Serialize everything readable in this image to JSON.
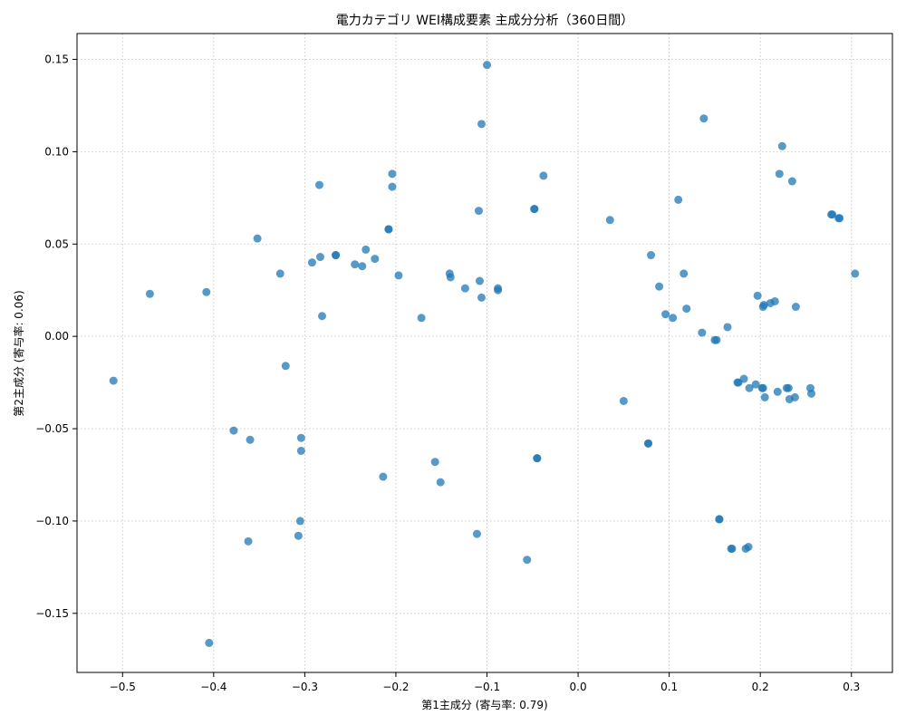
{
  "chart_data": {
    "type": "scatter",
    "title": "電力カテゴリ WEI構成要素 主成分分析（360日間）",
    "xlabel": "第1主成分 (寄与率: 0.79)",
    "ylabel": "第2主成分 (寄与率: 0.06)",
    "xlim": [
      -0.55,
      0.345
    ],
    "ylim": [
      -0.182,
      0.164
    ],
    "grid": true,
    "x_ticks": [
      -0.5,
      -0.4,
      -0.3,
      -0.2,
      -0.1,
      0.0,
      0.1,
      0.2,
      0.3
    ],
    "x_tick_labels": [
      "−0.5",
      "−0.4",
      "−0.3",
      "−0.2",
      "−0.1",
      "0.0",
      "0.1",
      "0.2",
      "0.3"
    ],
    "y_ticks": [
      -0.15,
      -0.1,
      -0.05,
      0.0,
      0.05,
      0.1,
      0.15
    ],
    "y_tick_labels": [
      "−0.15",
      "−0.10",
      "−0.05",
      "0.00",
      "0.05",
      "0.10",
      "0.15"
    ],
    "series": [
      {
        "color": "#1f77b4",
        "points": [
          [
            -0.51,
            -0.024
          ],
          [
            -0.47,
            0.023
          ],
          [
            -0.408,
            0.024
          ],
          [
            -0.405,
            -0.166
          ],
          [
            -0.378,
            -0.051
          ],
          [
            -0.362,
            -0.111
          ],
          [
            -0.36,
            -0.056
          ],
          [
            -0.352,
            0.053
          ],
          [
            -0.327,
            0.034
          ],
          [
            -0.321,
            -0.016
          ],
          [
            -0.307,
            -0.108
          ],
          [
            -0.305,
            -0.1
          ],
          [
            -0.304,
            -0.055
          ],
          [
            -0.304,
            -0.062
          ],
          [
            -0.292,
            0.04
          ],
          [
            -0.284,
            0.082
          ],
          [
            -0.283,
            0.043
          ],
          [
            -0.281,
            0.011
          ],
          [
            -0.266,
            0.044
          ],
          [
            -0.266,
            0.044
          ],
          [
            -0.245,
            0.039
          ],
          [
            -0.237,
            0.038
          ],
          [
            -0.233,
            0.047
          ],
          [
            -0.223,
            0.042
          ],
          [
            -0.214,
            -0.076
          ],
          [
            -0.208,
            0.058
          ],
          [
            -0.208,
            0.058
          ],
          [
            -0.204,
            0.088
          ],
          [
            -0.204,
            0.081
          ],
          [
            -0.197,
            0.033
          ],
          [
            -0.172,
            0.01
          ],
          [
            -0.157,
            -0.068
          ],
          [
            -0.151,
            -0.079
          ],
          [
            -0.141,
            0.034
          ],
          [
            -0.14,
            0.032
          ],
          [
            -0.124,
            0.026
          ],
          [
            -0.111,
            -0.107
          ],
          [
            -0.109,
            0.068
          ],
          [
            -0.108,
            0.03
          ],
          [
            -0.106,
            0.021
          ],
          [
            -0.106,
            0.115
          ],
          [
            -0.1,
            0.147
          ],
          [
            -0.088,
            0.026
          ],
          [
            -0.088,
            0.025
          ],
          [
            -0.056,
            -0.121
          ],
          [
            -0.048,
            0.069
          ],
          [
            -0.048,
            0.069
          ],
          [
            -0.045,
            -0.066
          ],
          [
            -0.045,
            -0.066
          ],
          [
            -0.038,
            0.087
          ],
          [
            0.035,
            0.063
          ],
          [
            0.05,
            -0.035
          ],
          [
            0.077,
            -0.058
          ],
          [
            0.077,
            -0.058
          ],
          [
            0.08,
            0.044
          ],
          [
            0.089,
            0.027
          ],
          [
            0.096,
            0.012
          ],
          [
            0.104,
            0.01
          ],
          [
            0.11,
            0.074
          ],
          [
            0.116,
            0.034
          ],
          [
            0.119,
            0.015
          ],
          [
            0.136,
            0.002
          ],
          [
            0.138,
            0.118
          ],
          [
            0.15,
            -0.002
          ],
          [
            0.152,
            -0.002
          ],
          [
            0.155,
            -0.099
          ],
          [
            0.155,
            -0.099
          ],
          [
            0.164,
            0.005
          ],
          [
            0.168,
            -0.115
          ],
          [
            0.169,
            -0.115
          ],
          [
            0.175,
            -0.025
          ],
          [
            0.176,
            -0.025
          ],
          [
            0.182,
            -0.023
          ],
          [
            0.184,
            -0.115
          ],
          [
            0.187,
            -0.114
          ],
          [
            0.188,
            -0.028
          ],
          [
            0.195,
            -0.026
          ],
          [
            0.197,
            0.022
          ],
          [
            0.202,
            -0.028
          ],
          [
            0.203,
            -0.028
          ],
          [
            0.203,
            0.016
          ],
          [
            0.204,
            0.017
          ],
          [
            0.205,
            -0.033
          ],
          [
            0.211,
            0.018
          ],
          [
            0.216,
            0.019
          ],
          [
            0.219,
            -0.03
          ],
          [
            0.221,
            0.088
          ],
          [
            0.224,
            0.103
          ],
          [
            0.229,
            -0.028
          ],
          [
            0.231,
            -0.028
          ],
          [
            0.232,
            -0.034
          ],
          [
            0.235,
            0.084
          ],
          [
            0.238,
            -0.033
          ],
          [
            0.239,
            0.016
          ],
          [
            0.255,
            -0.028
          ],
          [
            0.256,
            -0.031
          ],
          [
            0.278,
            0.066
          ],
          [
            0.279,
            0.066
          ],
          [
            0.286,
            0.064
          ],
          [
            0.287,
            0.064
          ],
          [
            0.304,
            0.034
          ]
        ]
      }
    ]
  }
}
